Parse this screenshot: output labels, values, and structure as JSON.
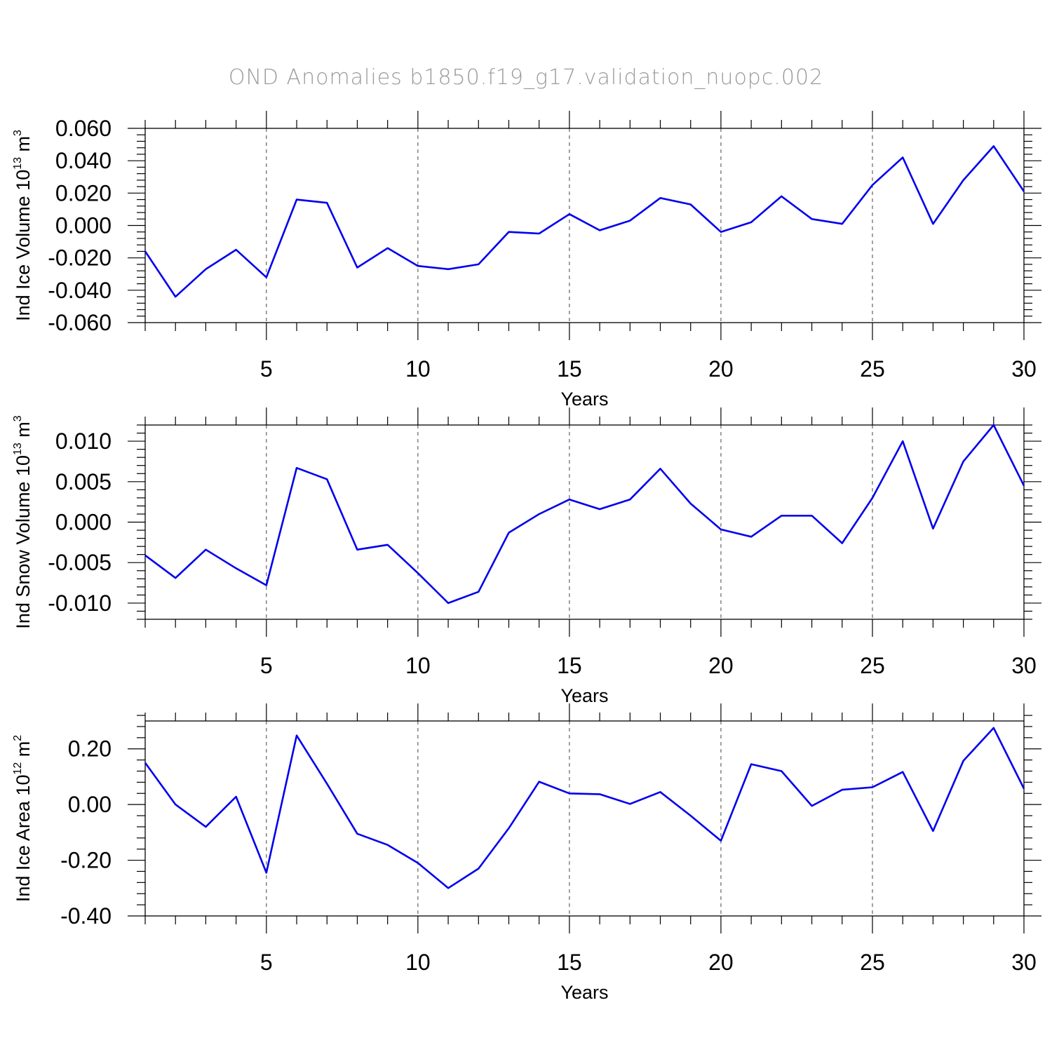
{
  "title": "OND Anomalies b1850.f19_g17.validation_nuopc.002",
  "chart_data": [
    {
      "type": "line",
      "ylabel": "Ind Ice Volume 10",
      "ylabel_exp": "13",
      "ylabel_unit": " m",
      "ylabel_unit_exp": "3",
      "xlabel": "Years",
      "xlim": [
        1,
        30
      ],
      "ylim": [
        -0.06,
        0.06
      ],
      "yticks": [
        -0.06,
        -0.04,
        -0.02,
        0.0,
        0.02,
        0.04,
        0.06
      ],
      "ytick_labels": [
        "-0.060",
        "-0.040",
        "-0.020",
        "0.000",
        "0.020",
        "0.040",
        "0.060"
      ],
      "xticks": [
        5,
        10,
        15,
        20,
        25,
        30
      ],
      "xtick_labels": [
        "5",
        "10",
        "15",
        "20",
        "25",
        "30"
      ],
      "grid": "vertical dashed at major x ticks",
      "series_color": "#0000ee",
      "x": [
        1,
        2,
        3,
        4,
        5,
        6,
        7,
        8,
        9,
        10,
        11,
        12,
        13,
        14,
        15,
        16,
        17,
        18,
        19,
        20,
        21,
        22,
        23,
        24,
        25,
        26,
        27,
        28,
        29,
        30
      ],
      "values": [
        -0.016,
        -0.044,
        -0.027,
        -0.015,
        -0.032,
        0.016,
        0.014,
        -0.026,
        -0.014,
        -0.025,
        -0.027,
        -0.024,
        -0.004,
        -0.005,
        0.007,
        -0.003,
        0.003,
        0.017,
        0.013,
        -0.004,
        0.002,
        0.018,
        0.004,
        0.001,
        0.025,
        0.042,
        0.001,
        0.028,
        0.049,
        0.021
      ]
    },
    {
      "type": "line",
      "ylabel": "Ind Snow Volume 10",
      "ylabel_exp": "13",
      "ylabel_unit": " m",
      "ylabel_unit_exp": "3",
      "xlabel": "Years",
      "xlim": [
        1,
        30
      ],
      "ylim": [
        -0.012,
        0.012
      ],
      "yticks": [
        -0.01,
        -0.005,
        0.0,
        0.005,
        0.01
      ],
      "ytick_labels": [
        "-0.010",
        "-0.005",
        "0.000",
        "0.005",
        "0.010"
      ],
      "xticks": [
        5,
        10,
        15,
        20,
        25,
        30
      ],
      "xtick_labels": [
        "5",
        "10",
        "15",
        "20",
        "25",
        "30"
      ],
      "grid": "vertical dashed at major x ticks",
      "series_color": "#0000ee",
      "x": [
        1,
        2,
        3,
        4,
        5,
        6,
        7,
        8,
        9,
        10,
        11,
        12,
        13,
        14,
        15,
        16,
        17,
        18,
        19,
        20,
        21,
        22,
        23,
        24,
        25,
        26,
        27,
        28,
        29,
        30
      ],
      "values": [
        -0.0041,
        -0.0069,
        -0.0034,
        -0.0057,
        -0.0078,
        0.0067,
        0.0053,
        -0.0034,
        -0.0028,
        -0.0063,
        -0.01,
        -0.0086,
        -0.0013,
        0.001,
        0.0028,
        0.0016,
        0.0028,
        0.0066,
        0.0023,
        -0.0009,
        -0.0018,
        0.0008,
        0.0008,
        -0.0026,
        0.003,
        0.01,
        -0.0008,
        0.0075,
        0.012,
        0.0045
      ]
    },
    {
      "type": "line",
      "ylabel": "Ind Ice Area 10",
      "ylabel_exp": "12",
      "ylabel_unit": " m",
      "ylabel_unit_exp": "2",
      "xlabel": "Years",
      "xlim": [
        1,
        30
      ],
      "ylim": [
        -0.4,
        0.3
      ],
      "yticks": [
        -0.4,
        -0.2,
        0.0,
        0.2
      ],
      "ytick_labels": [
        "-0.40",
        "-0.20",
        "0.00",
        "0.20"
      ],
      "xticks": [
        5,
        10,
        15,
        20,
        25,
        30
      ],
      "xtick_labels": [
        "5",
        "10",
        "15",
        "20",
        "25",
        "30"
      ],
      "grid": "vertical dashed at major x ticks",
      "series_color": "#0000ee",
      "x": [
        1,
        2,
        3,
        4,
        5,
        6,
        7,
        8,
        9,
        10,
        11,
        12,
        13,
        14,
        15,
        16,
        17,
        18,
        19,
        20,
        21,
        22,
        23,
        24,
        25,
        26,
        27,
        28,
        29,
        30
      ],
      "values": [
        0.15,
        0.0,
        -0.08,
        0.028,
        -0.245,
        0.248,
        0.075,
        -0.105,
        -0.145,
        -0.21,
        -0.3,
        -0.23,
        -0.085,
        0.082,
        0.04,
        0.037,
        0.002,
        0.045,
        -0.04,
        -0.13,
        0.145,
        0.12,
        -0.005,
        0.053,
        0.062,
        0.117,
        -0.095,
        0.157,
        0.275,
        0.057
      ]
    }
  ]
}
